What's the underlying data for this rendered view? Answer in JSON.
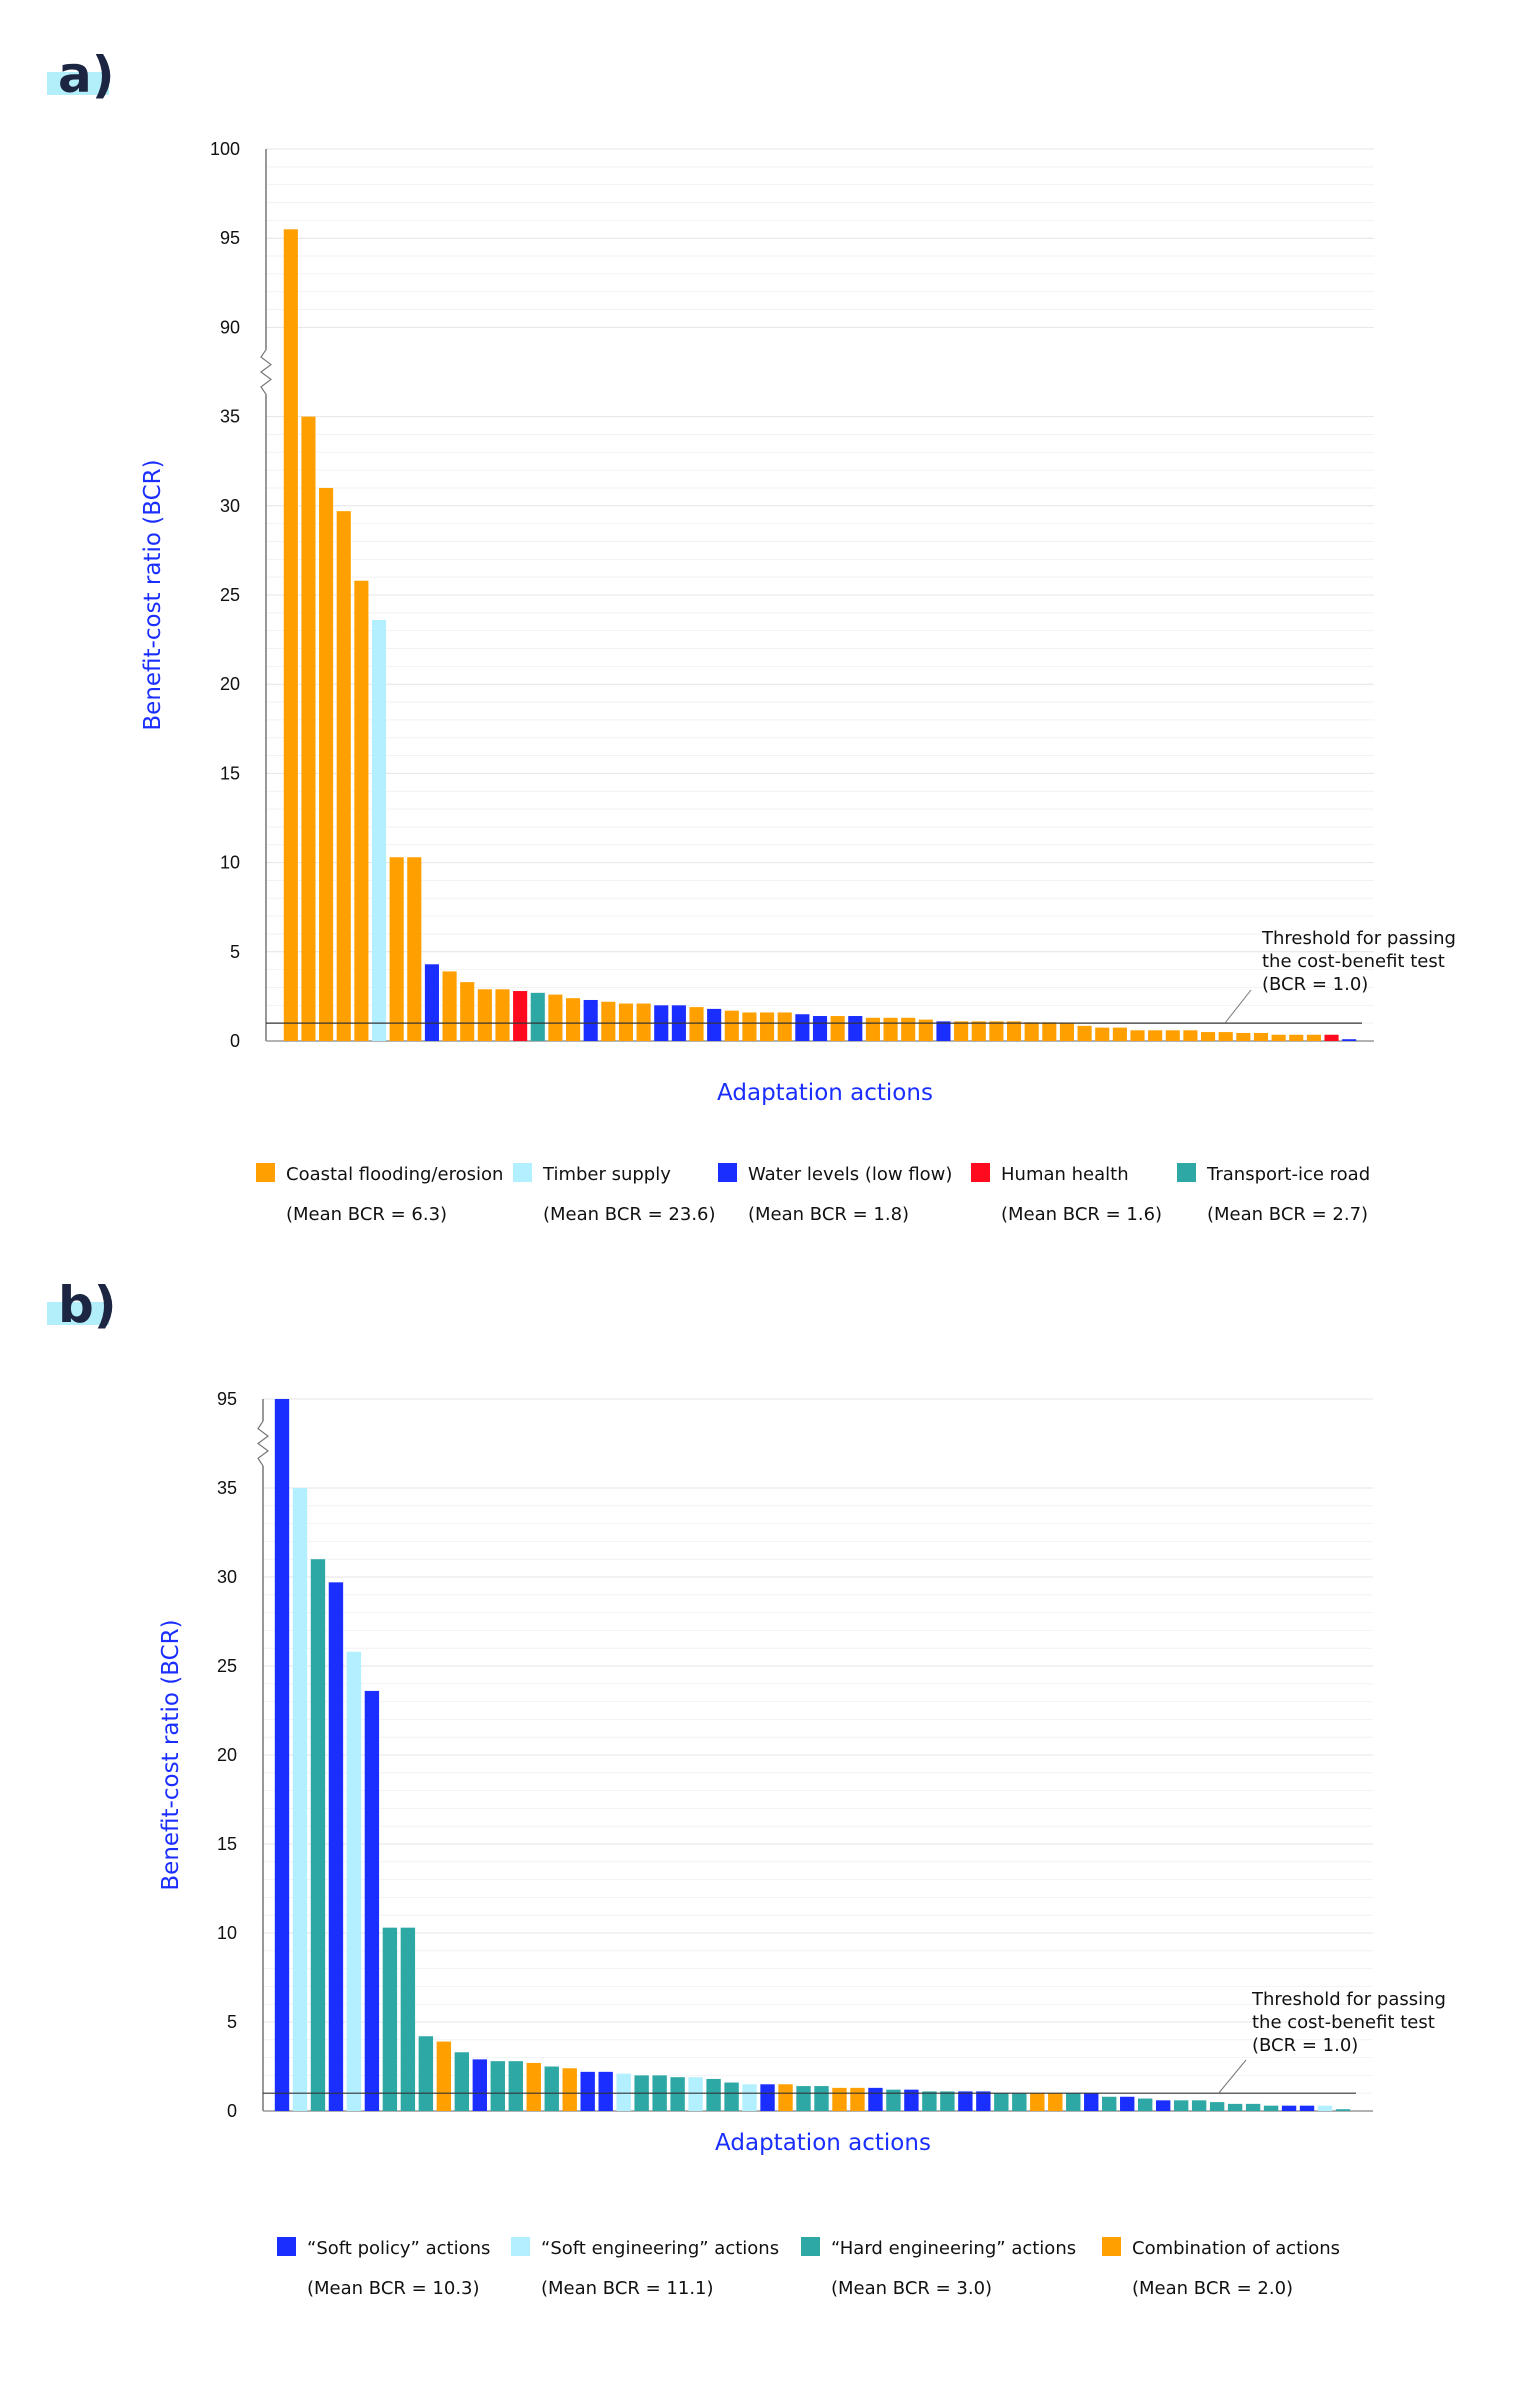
{
  "chart_data": [
    {
      "panel_label": "a)",
      "type": "bar",
      "xlabel": "Adaptation actions",
      "ylabel": "Benefit-cost ratio (BCR)",
      "axis_break": [
        35,
        90
      ],
      "ylim": [
        0,
        100
      ],
      "yticks": [
        0,
        5,
        10,
        15,
        20,
        25,
        30,
        35,
        90,
        95,
        100
      ],
      "grid": true,
      "threshold": {
        "value": 1.0,
        "label_lines": [
          "Threshold for passing",
          "the cost-benefit test",
          "(BCR = 1.0)"
        ]
      },
      "colors": {
        "coastal": "#ffa000",
        "timber": "#b3f0ff",
        "water": "#1a2fff",
        "health": "#ff0a1e",
        "transport": "#2ea8a5"
      },
      "legend": [
        {
          "key": "coastal",
          "label": "Coastal flooding/erosion",
          "mean": "(Mean BCR = 6.3)"
        },
        {
          "key": "timber",
          "label": "Timber supply",
          "mean": "(Mean BCR = 23.6)"
        },
        {
          "key": "water",
          "label": "Water levels (low flow)",
          "mean": "(Mean BCR = 1.8)"
        },
        {
          "key": "health",
          "label": "Human health",
          "mean": "(Mean BCR = 1.6)"
        },
        {
          "key": "transport",
          "label": "Transport-ice road",
          "mean": "(Mean BCR = 2.7)"
        }
      ],
      "values": [
        95.5,
        35,
        31,
        29.7,
        25.8,
        23.6,
        10.3,
        10.3,
        4.3,
        3.9,
        3.3,
        2.9,
        2.9,
        2.8,
        2.7,
        2.6,
        2.4,
        2.3,
        2.2,
        2.1,
        2.1,
        2.0,
        2.0,
        1.9,
        1.8,
        1.7,
        1.6,
        1.6,
        1.6,
        1.5,
        1.4,
        1.4,
        1.4,
        1.3,
        1.3,
        1.3,
        1.2,
        1.1,
        1.1,
        1.1,
        1.1,
        1.1,
        1.05,
        1.05,
        1.0,
        0.85,
        0.75,
        0.75,
        0.6,
        0.6,
        0.6,
        0.6,
        0.5,
        0.5,
        0.45,
        0.45,
        0.35,
        0.35,
        0.35,
        0.35,
        0.1
      ],
      "categories": [
        "coastal",
        "coastal",
        "coastal",
        "coastal",
        "coastal",
        "timber",
        "coastal",
        "coastal",
        "water",
        "coastal",
        "coastal",
        "coastal",
        "coastal",
        "health",
        "transport",
        "coastal",
        "coastal",
        "water",
        "coastal",
        "coastal",
        "coastal",
        "water",
        "water",
        "coastal",
        "water",
        "coastal",
        "coastal",
        "coastal",
        "coastal",
        "water",
        "water",
        "coastal",
        "water",
        "coastal",
        "coastal",
        "coastal",
        "coastal",
        "water",
        "coastal",
        "coastal",
        "coastal",
        "coastal",
        "coastal",
        "coastal",
        "coastal",
        "coastal",
        "coastal",
        "coastal",
        "coastal",
        "coastal",
        "coastal",
        "coastal",
        "coastal",
        "coastal",
        "coastal",
        "coastal",
        "coastal",
        "coastal",
        "coastal",
        "health",
        "water"
      ]
    },
    {
      "panel_label": "b)",
      "type": "bar",
      "xlabel": "Adaptation actions",
      "ylabel": "Benefit-cost ratio (BCR)",
      "axis_break": [
        35,
        95
      ],
      "ylim": [
        0,
        95
      ],
      "yticks": [
        0,
        5,
        10,
        15,
        20,
        25,
        30,
        35,
        95
      ],
      "grid": true,
      "threshold": {
        "value": 1.0,
        "label_lines": [
          "Threshold for passing",
          "the cost-benefit test",
          "(BCR = 1.0)"
        ]
      },
      "colors": {
        "policy": "#1a2fff",
        "softeng": "#b3f0ff",
        "hardeng": "#2ea8a5",
        "combo": "#ffa000"
      },
      "legend": [
        {
          "key": "policy",
          "label": "“Soft policy” actions",
          "mean": "(Mean BCR = 10.3)"
        },
        {
          "key": "softeng",
          "label": "“Soft engineering” actions",
          "mean": "(Mean BCR = 11.1)"
        },
        {
          "key": "hardeng",
          "label": "“Hard engineering” actions",
          "mean": "(Mean BCR = 3.0)"
        },
        {
          "key": "combo",
          "label": "Combination of actions",
          "mean": "(Mean BCR = 2.0)"
        }
      ],
      "values": [
        95,
        35,
        31,
        29.7,
        25.8,
        23.6,
        10.3,
        10.3,
        4.2,
        3.9,
        3.3,
        2.9,
        2.8,
        2.8,
        2.7,
        2.5,
        2.4,
        2.2,
        2.2,
        2.1,
        2.0,
        2.0,
        1.9,
        1.9,
        1.8,
        1.6,
        1.5,
        1.5,
        1.5,
        1.4,
        1.4,
        1.3,
        1.3,
        1.3,
        1.2,
        1.2,
        1.1,
        1.1,
        1.1,
        1.1,
        1.0,
        1.0,
        1.0,
        1.0,
        1.0,
        1.0,
        0.8,
        0.8,
        0.7,
        0.6,
        0.6,
        0.6,
        0.5,
        0.4,
        0.4,
        0.3,
        0.3,
        0.3,
        0.3,
        0.1
      ],
      "categories": [
        "policy",
        "softeng",
        "hardeng",
        "policy",
        "softeng",
        "policy",
        "hardeng",
        "hardeng",
        "hardeng",
        "combo",
        "hardeng",
        "policy",
        "hardeng",
        "hardeng",
        "combo",
        "hardeng",
        "combo",
        "policy",
        "policy",
        "softeng",
        "hardeng",
        "hardeng",
        "hardeng",
        "softeng",
        "hardeng",
        "hardeng",
        "softeng",
        "policy",
        "combo",
        "hardeng",
        "hardeng",
        "combo",
        "combo",
        "policy",
        "hardeng",
        "policy",
        "hardeng",
        "hardeng",
        "policy",
        "policy",
        "hardeng",
        "hardeng",
        "combo",
        "combo",
        "hardeng",
        "policy",
        "hardeng",
        "policy",
        "hardeng",
        "policy",
        "hardeng",
        "hardeng",
        "hardeng",
        "hardeng",
        "hardeng",
        "hardeng",
        "policy",
        "policy",
        "softeng",
        "hardeng"
      ]
    }
  ]
}
